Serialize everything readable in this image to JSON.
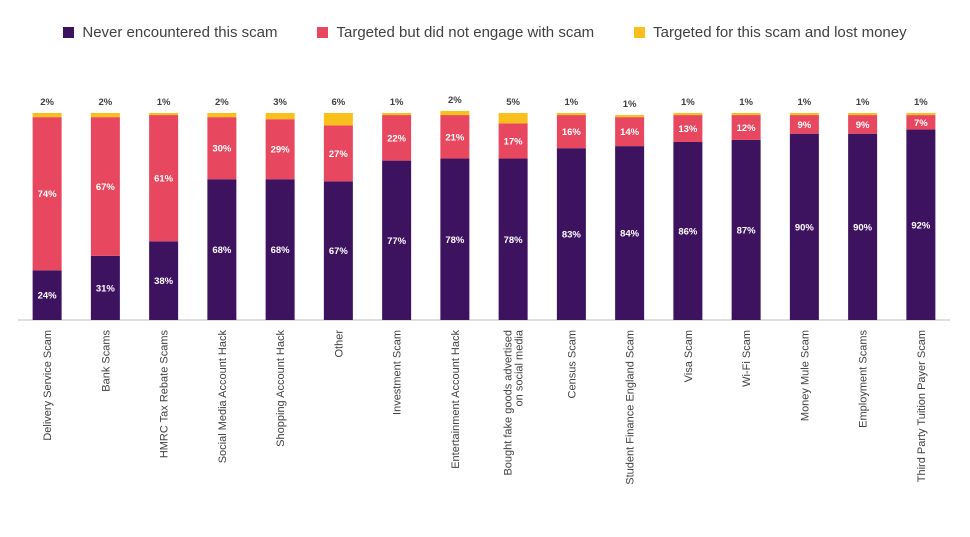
{
  "chart_data": {
    "type": "bar",
    "stacked": true,
    "legend_position": "top",
    "grid": false,
    "categories": [
      "Delivery Service Scam",
      "Bank Scams",
      "HMRC Tax Rebate Scams",
      "Social Media Account Hack",
      "Shopping Account Hack",
      "Other",
      "Investment Scam",
      "Entertainment Account Hack",
      "Bought fake goods advertised on social media",
      "Census Scam",
      "Student Finance England Scam",
      "Visa Scam",
      "Wi-Fi Scam",
      "Money Mule Scam",
      "Employment Scams",
      "Third Party Tuition Payer Scam"
    ],
    "series": [
      {
        "name": "Never encountered this scam",
        "color": "#3d1360",
        "values": [
          24,
          31,
          38,
          68,
          68,
          67,
          77,
          78,
          78,
          83,
          84,
          86,
          87,
          90,
          90,
          92
        ],
        "labels": [
          "24%",
          "31%",
          "38%",
          "68%",
          "68%",
          "67%",
          "77%",
          "78%",
          "78%",
          "83%",
          "84%",
          "86%",
          "87%",
          "90%",
          "90%",
          "92%"
        ]
      },
      {
        "name": "Targeted but did not engage with scam",
        "color": "#e8485f",
        "values": [
          74,
          67,
          61,
          30,
          29,
          27,
          22,
          21,
          17,
          16,
          14,
          13,
          12,
          9,
          9,
          7
        ],
        "labels": [
          "74%",
          "67%",
          "61%",
          "30%",
          "29%",
          "27%",
          "22%",
          "21%",
          "17%",
          "16%",
          "14%",
          "13%",
          "12%",
          "9%",
          "9%",
          "7%"
        ]
      },
      {
        "name": "Targeted for this scam and lost money",
        "color": "#f9c01b",
        "values": [
          2,
          2,
          1,
          2,
          3,
          6,
          1,
          2,
          5,
          1,
          1,
          1,
          1,
          1,
          1,
          1
        ],
        "labels": [
          "2%",
          "2%",
          "1%",
          "2%",
          "3%",
          "6%",
          "1%",
          "2%",
          "5%",
          "1%",
          "1%",
          "1%",
          "1%",
          "1%",
          "1%",
          "1%"
        ]
      }
    ],
    "ylim": [
      0,
      100
    ]
  }
}
